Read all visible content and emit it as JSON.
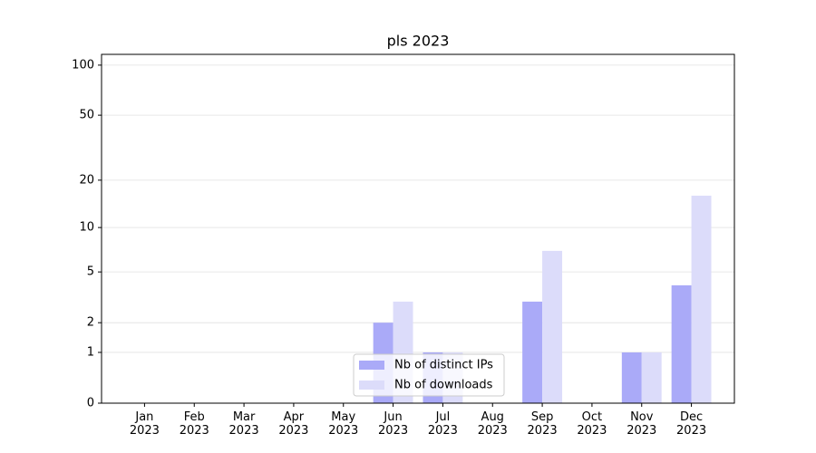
{
  "chart_data": {
    "type": "bar",
    "title": "pls 2023",
    "scale": "log1p",
    "categories": [
      "Jan 2023",
      "Feb 2023",
      "Mar 2023",
      "Apr 2023",
      "May 2023",
      "Jun 2023",
      "Jul 2023",
      "Aug 2023",
      "Sep 2023",
      "Oct 2023",
      "Nov 2023",
      "Dec 2023"
    ],
    "series": [
      {
        "name": "Nb of distinct IPs",
        "color": "#aaaaf8",
        "values": [
          0,
          0,
          0,
          0,
          0,
          2,
          1,
          0,
          3,
          0,
          1,
          4
        ]
      },
      {
        "name": "Nb of downloads",
        "color": "#dcdcfa",
        "values": [
          0,
          0,
          0,
          0,
          0,
          3,
          1,
          0,
          7,
          0,
          1,
          16
        ]
      }
    ],
    "ylim": [
      0,
      116
    ],
    "yticks": [
      0,
      1,
      2,
      5,
      10,
      20,
      50,
      100
    ],
    "grid": true,
    "legend": "lower center"
  }
}
